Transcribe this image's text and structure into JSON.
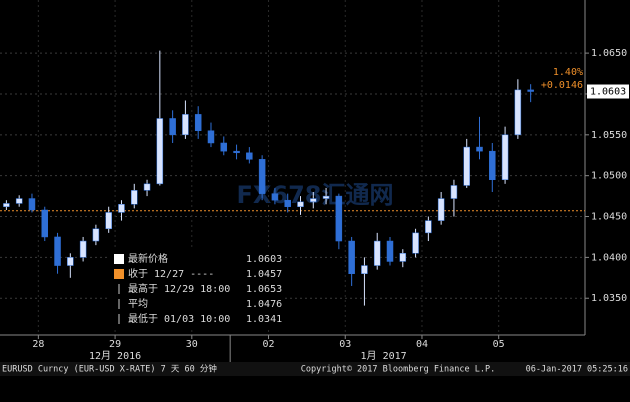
{
  "chart_data": {
    "type": "candlestick",
    "x": [
      -10,
      -6,
      -2,
      2,
      6,
      10,
      14,
      18,
      22,
      26,
      30,
      34,
      38,
      42,
      46,
      50,
      54,
      58,
      62,
      66,
      70,
      74,
      78,
      82,
      86,
      90,
      94,
      98,
      102,
      106,
      110,
      114,
      118,
      122,
      126,
      130,
      134,
      138,
      142,
      146,
      150,
      154
    ],
    "open": [
      1.0462,
      1.0466,
      1.0472,
      1.0458,
      1.0425,
      1.039,
      1.04,
      1.042,
      1.0435,
      1.0455,
      1.0465,
      1.0482,
      1.049,
      1.057,
      1.055,
      1.0575,
      1.0555,
      1.054,
      1.053,
      1.0528,
      1.052,
      1.0478,
      1.047,
      1.0462,
      1.0468,
      1.0472,
      1.0475,
      1.042,
      1.038,
      1.039,
      1.042,
      1.0395,
      1.0405,
      1.043,
      1.0445,
      1.0472,
      1.0488,
      1.0535,
      1.053,
      1.0495,
      1.055,
      1.0605
    ],
    "high": [
      1.047,
      1.0476,
      1.0478,
      1.0462,
      1.043,
      1.0405,
      1.0425,
      1.044,
      1.0462,
      1.047,
      1.049,
      1.0495,
      1.0653,
      1.058,
      1.0592,
      1.0585,
      1.0565,
      1.0548,
      1.0538,
      1.0535,
      1.0525,
      1.0485,
      1.0478,
      1.0475,
      1.048,
      1.0485,
      1.0478,
      1.0425,
      1.04,
      1.043,
      1.0425,
      1.041,
      1.0435,
      1.045,
      1.048,
      1.0495,
      1.0545,
      1.0572,
      1.054,
      1.056,
      1.0618,
      1.0612
    ],
    "low": [
      1.0458,
      1.0462,
      1.0455,
      1.042,
      1.038,
      1.0375,
      1.0395,
      1.0415,
      1.043,
      1.0445,
      1.046,
      1.0475,
      1.0488,
      1.054,
      1.0545,
      1.0545,
      1.0535,
      1.0525,
      1.052,
      1.0515,
      1.047,
      1.0465,
      1.0455,
      1.0452,
      1.046,
      1.0465,
      1.041,
      1.0365,
      1.0341,
      1.0385,
      1.039,
      1.0388,
      1.04,
      1.042,
      1.044,
      1.045,
      1.0485,
      1.052,
      1.048,
      1.049,
      1.0545,
      1.059
    ],
    "close": [
      1.0466,
      1.0472,
      1.0458,
      1.0425,
      1.039,
      1.04,
      1.042,
      1.0435,
      1.0455,
      1.0465,
      1.0482,
      1.049,
      1.057,
      1.055,
      1.0575,
      1.0555,
      1.054,
      1.053,
      1.0528,
      1.052,
      1.0478,
      1.047,
      1.0462,
      1.0468,
      1.0472,
      1.0475,
      1.042,
      1.038,
      1.039,
      1.042,
      1.0395,
      1.0405,
      1.043,
      1.0445,
      1.0472,
      1.0488,
      1.0535,
      1.053,
      1.0495,
      1.055,
      1.0605,
      1.0603
    ],
    "up_color": "#d8e4ff",
    "down_color": "#2f6fd6",
    "xlim": [
      -12,
      171
    ],
    "xticks": [
      {
        "value": 0,
        "label": "28"
      },
      {
        "value": 24,
        "label": "29"
      },
      {
        "value": 48,
        "label": "30"
      },
      {
        "value": 72,
        "label": "02"
      },
      {
        "value": 96,
        "label": "03"
      },
      {
        "value": 120,
        "label": "04"
      },
      {
        "value": 144,
        "label": "05"
      }
    ],
    "months": [
      "12月 2016",
      "1月 2017"
    ],
    "ylim": [
      1.0305,
      1.0715
    ],
    "yticks": [
      {
        "value": 1.035,
        "label": "1.0350"
      },
      {
        "value": 1.04,
        "label": "1.0400"
      },
      {
        "value": 1.045,
        "label": "1.0450"
      },
      {
        "value": 1.05,
        "label": "1.0500"
      },
      {
        "value": 1.055,
        "label": "1.0550"
      },
      {
        "value": 1.06,
        "label": "1.0600"
      },
      {
        "value": 1.065,
        "label": "1.0650"
      }
    ],
    "grid": true,
    "change_pct": "1.40%",
    "change": "+0.0146",
    "legend": [
      {
        "label": "最新价格",
        "value": 1.0603
      },
      {
        "label": "收于 12/27 ----",
        "value": 1.0457
      },
      {
        "label": "最高于 12/29 18:00",
        "value": 1.0653
      },
      {
        "label": "平均",
        "value": 1.0476
      },
      {
        "label": "最低于 01/03 10:00",
        "value": 1.0341
      }
    ],
    "watermark": "FX678汇通网",
    "footer": [
      "EURUSD Curncy (EUR-USD X-RATE) 7 天 60 分钟",
      "Copyright© 2017 Bloomberg Finance L.P.",
      "06-Jan-2017 05:25:16"
    ]
  }
}
